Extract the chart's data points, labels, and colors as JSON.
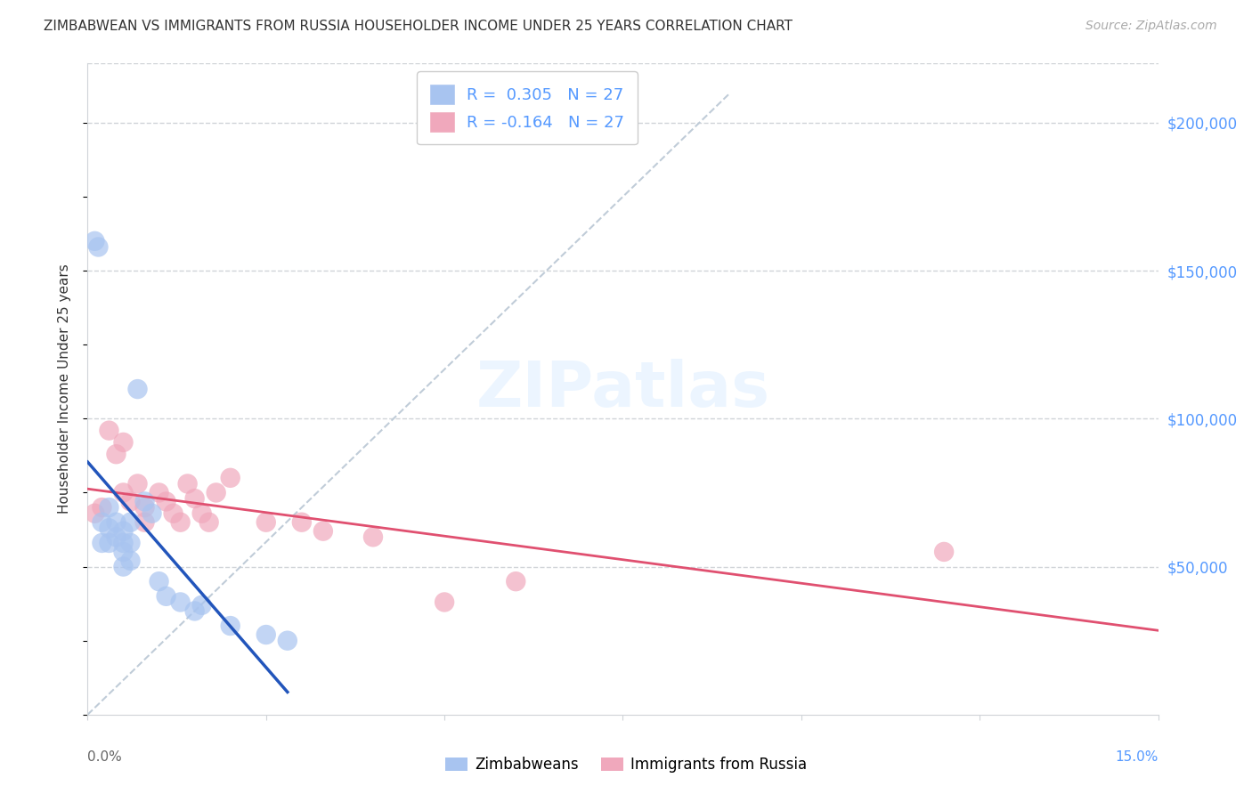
{
  "title": "ZIMBABWEAN VS IMMIGRANTS FROM RUSSIA HOUSEHOLDER INCOME UNDER 25 YEARS CORRELATION CHART",
  "source": "Source: ZipAtlas.com",
  "ylabel": "Householder Income Under 25 years",
  "R_zimbabwean": 0.305,
  "N_zimbabwean": 27,
  "R_russia": -0.164,
  "N_russia": 27,
  "zimbabwean_color": "#a8c4f0",
  "russia_color": "#f0a8bc",
  "zimbabwean_line_color": "#2255bb",
  "russia_line_color": "#e05070",
  "diagonal_color": "#c0ccd8",
  "right_axis_color": "#5599ff",
  "text_color": "#333333",
  "source_color": "#aaaaaa",
  "grid_color": "#d0d4d8",
  "background_color": "#ffffff",
  "xmin": 0.0,
  "xmax": 0.15,
  "ymin": 0,
  "ymax": 220000,
  "yticks_right": [
    50000,
    100000,
    150000,
    200000
  ],
  "ytick_labels_right": [
    "$50,000",
    "$100,000",
    "$150,000",
    "$200,000"
  ],
  "zimbabwean_x": [
    0.001,
    0.0015,
    0.002,
    0.002,
    0.003,
    0.003,
    0.003,
    0.004,
    0.004,
    0.005,
    0.005,
    0.005,
    0.005,
    0.006,
    0.006,
    0.006,
    0.007,
    0.008,
    0.009,
    0.01,
    0.011,
    0.013,
    0.015,
    0.016,
    0.02,
    0.025,
    0.028
  ],
  "zimbabwean_y": [
    160000,
    158000,
    65000,
    58000,
    70000,
    63000,
    58000,
    65000,
    60000,
    62000,
    58000,
    55000,
    50000,
    65000,
    58000,
    52000,
    110000,
    72000,
    68000,
    45000,
    40000,
    38000,
    35000,
    37000,
    30000,
    27000,
    25000
  ],
  "russia_x": [
    0.001,
    0.002,
    0.003,
    0.004,
    0.005,
    0.005,
    0.006,
    0.007,
    0.008,
    0.008,
    0.01,
    0.011,
    0.012,
    0.013,
    0.014,
    0.015,
    0.016,
    0.017,
    0.018,
    0.02,
    0.025,
    0.03,
    0.033,
    0.04,
    0.05,
    0.06,
    0.12
  ],
  "russia_y": [
    68000,
    70000,
    96000,
    88000,
    92000,
    75000,
    72000,
    78000,
    65000,
    70000,
    75000,
    72000,
    68000,
    65000,
    78000,
    73000,
    68000,
    65000,
    75000,
    80000,
    65000,
    65000,
    62000,
    60000,
    38000,
    45000,
    55000
  ],
  "zim_line_xstart": 0.0,
  "zim_line_xend": 0.028,
  "rus_line_xstart": 0.0,
  "rus_line_xend": 0.15,
  "diag_xstart": 0.0,
  "diag_ystart": 0,
  "diag_xend": 0.09,
  "diag_yend": 210000
}
